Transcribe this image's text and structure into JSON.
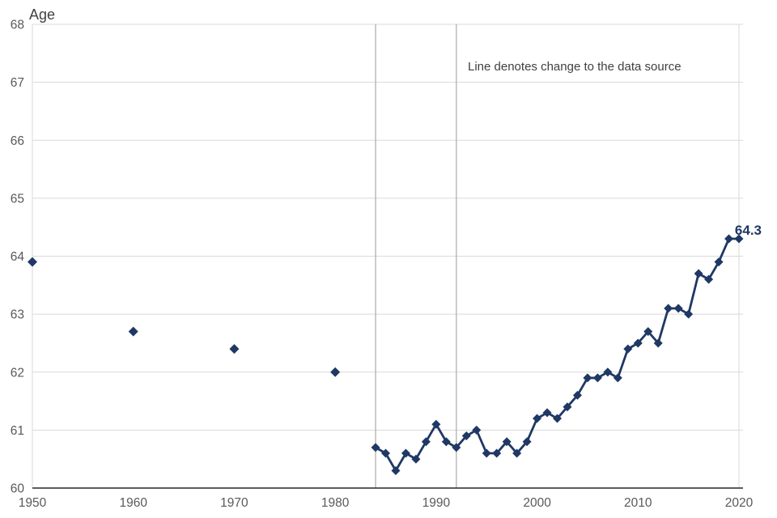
{
  "chart_data": {
    "type": "line",
    "title": "Age",
    "note": "Line denotes change to the data source",
    "end_value_label": "64.3",
    "xlim": [
      1950,
      2020
    ],
    "ylim": [
      60,
      68
    ],
    "x_ticks": [
      1950,
      1960,
      1970,
      1980,
      1990,
      2000,
      2010,
      2020
    ],
    "y_ticks": [
      60,
      61,
      62,
      63,
      64,
      65,
      66,
      67,
      68
    ],
    "grid": true,
    "legend": "none",
    "change_lines_x": [
      1984,
      1992
    ],
    "series": [
      {
        "name": "decennial-points",
        "style": "markers-only",
        "points": [
          [
            1950,
            63.9
          ],
          [
            1960,
            62.7
          ],
          [
            1970,
            62.4
          ],
          [
            1980,
            62.0
          ]
        ]
      },
      {
        "name": "annual-series",
        "style": "line-with-markers",
        "points": [
          [
            1984,
            60.7
          ],
          [
            1985,
            60.6
          ],
          [
            1986,
            60.3
          ],
          [
            1987,
            60.6
          ],
          [
            1988,
            60.5
          ],
          [
            1989,
            60.8
          ],
          [
            1990,
            61.1
          ],
          [
            1991,
            60.8
          ],
          [
            1992,
            60.7
          ],
          [
            1993,
            60.9
          ],
          [
            1994,
            61.0
          ],
          [
            1995,
            60.6
          ],
          [
            1996,
            60.6
          ],
          [
            1997,
            60.8
          ],
          [
            1998,
            60.6
          ],
          [
            1999,
            60.8
          ],
          [
            2000,
            61.2
          ],
          [
            2001,
            61.3
          ],
          [
            2002,
            61.2
          ],
          [
            2003,
            61.4
          ],
          [
            2004,
            61.6
          ],
          [
            2005,
            61.9
          ],
          [
            2006,
            61.9
          ],
          [
            2007,
            62.0
          ],
          [
            2008,
            61.9
          ],
          [
            2009,
            62.4
          ],
          [
            2010,
            62.5
          ],
          [
            2011,
            62.7
          ],
          [
            2012,
            62.5
          ],
          [
            2013,
            63.1
          ],
          [
            2014,
            63.1
          ],
          [
            2015,
            63.0
          ],
          [
            2016,
            63.7
          ],
          [
            2017,
            63.6
          ],
          [
            2018,
            63.9
          ],
          [
            2019,
            64.3
          ],
          [
            2020,
            64.3
          ]
        ]
      }
    ],
    "colors": {
      "line": "#1f3864",
      "grid": "#d9d9d9",
      "border": "#d9d9d9",
      "change_line": "#b0b0b0",
      "axis": "#262626",
      "tick_text": "#595959",
      "text": "#404040"
    }
  }
}
